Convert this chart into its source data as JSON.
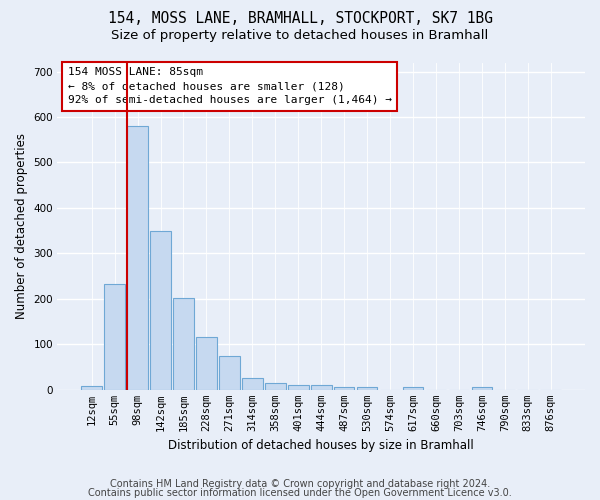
{
  "title1": "154, MOSS LANE, BRAMHALL, STOCKPORT, SK7 1BG",
  "title2": "Size of property relative to detached houses in Bramhall",
  "xlabel": "Distribution of detached houses by size in Bramhall",
  "ylabel": "Number of detached properties",
  "bar_labels": [
    "12sqm",
    "55sqm",
    "98sqm",
    "142sqm",
    "185sqm",
    "228sqm",
    "271sqm",
    "314sqm",
    "358sqm",
    "401sqm",
    "444sqm",
    "487sqm",
    "530sqm",
    "574sqm",
    "617sqm",
    "660sqm",
    "703sqm",
    "746sqm",
    "790sqm",
    "833sqm",
    "876sqm"
  ],
  "bar_values": [
    8,
    232,
    580,
    350,
    202,
    115,
    73,
    25,
    15,
    10,
    10,
    5,
    5,
    0,
    5,
    0,
    0,
    5,
    0,
    0,
    0
  ],
  "bar_color": "#c6d9f0",
  "bar_edge_color": "#6fa8d5",
  "property_line_x": 1.55,
  "property_line_color": "#cc0000",
  "annotation_text": "154 MOSS LANE: 85sqm\n← 8% of detached houses are smaller (128)\n92% of semi-detached houses are larger (1,464) →",
  "annotation_box_facecolor": "#ffffff",
  "annotation_box_edgecolor": "#cc0000",
  "ylim": [
    0,
    720
  ],
  "yticks": [
    0,
    100,
    200,
    300,
    400,
    500,
    600,
    700
  ],
  "bg_color": "#e8eef8",
  "grid_color": "#ffffff",
  "footer1": "Contains HM Land Registry data © Crown copyright and database right 2024.",
  "footer2": "Contains public sector information licensed under the Open Government Licence v3.0.",
  "title_fontsize": 10.5,
  "subtitle_fontsize": 9.5,
  "ylabel_fontsize": 8.5,
  "xlabel_fontsize": 8.5,
  "tick_fontsize": 7.5,
  "annot_fontsize": 8,
  "footer_fontsize": 7
}
